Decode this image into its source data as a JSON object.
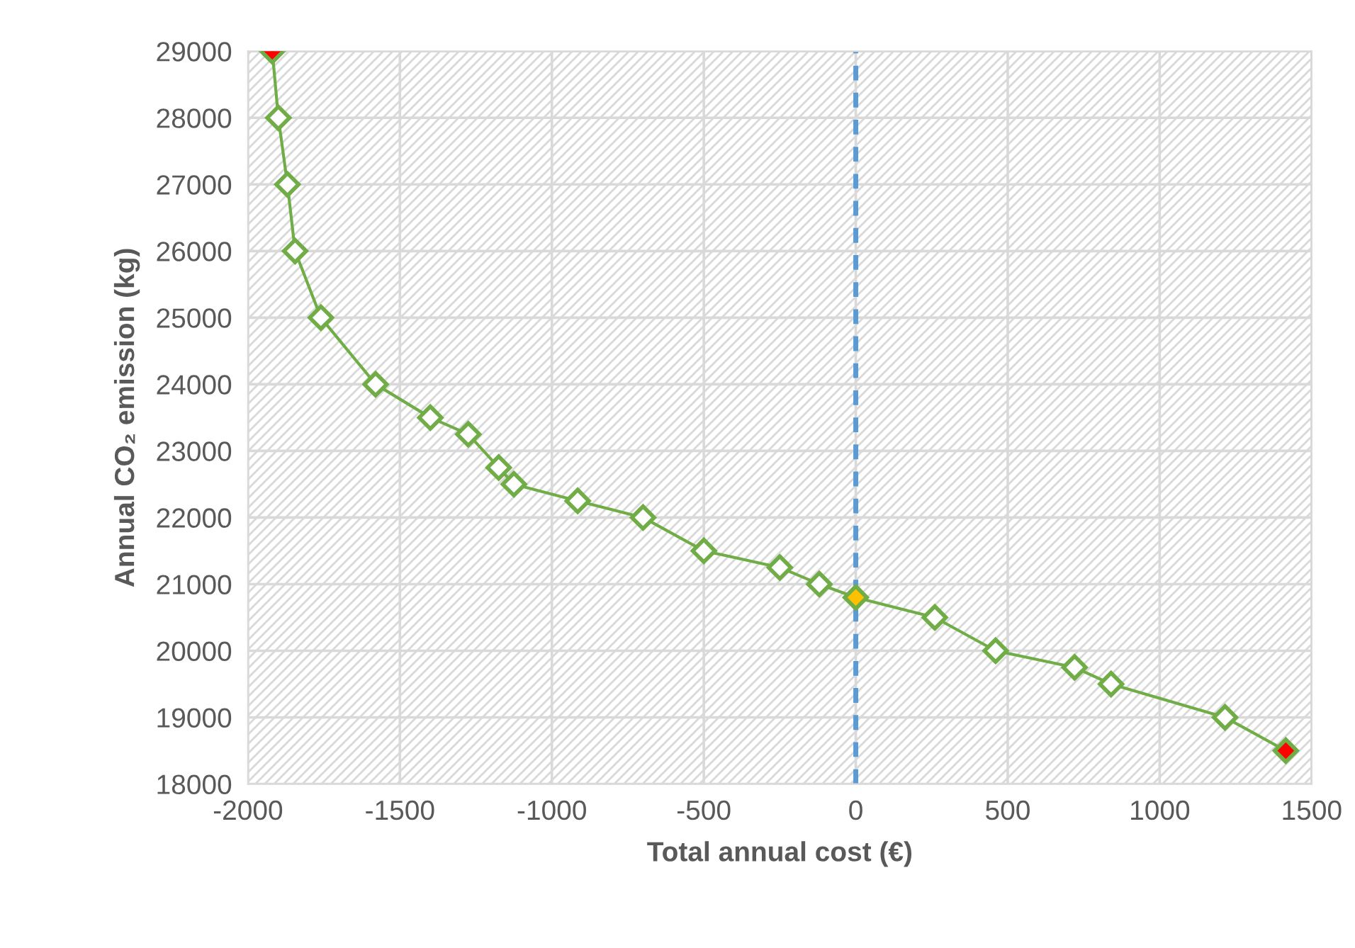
{
  "chart_data": {
    "type": "line",
    "xlabel": "Total annual cost (€)",
    "ylabel": "Annual CO₂ emission (kg)",
    "x": [
      -1920,
      -1900,
      -1870,
      -1845,
      -1760,
      -1580,
      -1400,
      -1275,
      -1175,
      -1125,
      -915,
      -700,
      -500,
      -250,
      -120,
      0,
      260,
      460,
      720,
      840,
      1215,
      1415
    ],
    "series": [
      {
        "color": "#70ad47",
        "values": [
          29000,
          28000,
          27000,
          26000,
          25000,
          24000,
          23500,
          23250,
          22750,
          22500,
          22250,
          22000,
          21500,
          21250,
          21000,
          20800,
          20500,
          20000,
          19750,
          19500,
          19000,
          18500
        ],
        "colors": [
          "#ff0000",
          "#ffffff",
          "#ffffff",
          "#ffffff",
          "#ffffff",
          "#ffffff",
          "#ffffff",
          "#ffffff",
          "#ffffff",
          "#ffffff",
          "#ffffff",
          "#ffffff",
          "#ffffff",
          "#ffffff",
          "#ffffff",
          "#ffc000",
          "#ffffff",
          "#ffffff",
          "#ffffff",
          "#ffffff",
          "#ffffff",
          "#ff0000"
        ]
      }
    ],
    "xlim": [
      -2000,
      1500
    ],
    "xticks": [
      -2000,
      -1500,
      -1000,
      -500,
      0,
      500,
      1000,
      1500
    ],
    "ylim": [
      18000,
      29000
    ],
    "yticks": [
      18000,
      19000,
      20000,
      21000,
      22000,
      23000,
      24000,
      25000,
      26000,
      27000,
      28000,
      29000
    ],
    "ref_lines": [
      {
        "axis": "x",
        "value": 0,
        "color": "#5b9bd5",
        "line_style": "dashed"
      }
    ],
    "grid": true,
    "legend": false,
    "marker": "diamond",
    "line_style": "solid"
  }
}
